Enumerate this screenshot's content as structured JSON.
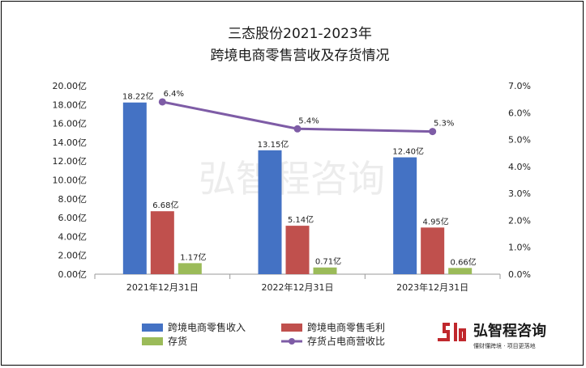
{
  "chart_data": {
    "type": "bar",
    "title_lines": [
      "三态股份2021-2023年",
      "跨境电商零售营收及存货情况"
    ],
    "categories": [
      "2021年12月31日",
      "2022年12月31日",
      "2023年12月31日"
    ],
    "series": [
      {
        "name": "跨境电商零售收入",
        "kind": "bar",
        "color": "#4472C4",
        "values": [
          18.22,
          13.15,
          12.4
        ],
        "labels": [
          "18.22亿",
          "13.15亿",
          "12.40亿"
        ]
      },
      {
        "name": "跨境电商零售毛利",
        "kind": "bar",
        "color": "#C0504D",
        "values": [
          6.68,
          5.14,
          4.95
        ],
        "labels": [
          "6.68亿",
          "5.14亿",
          "4.95亿"
        ]
      },
      {
        "name": "存货",
        "kind": "bar",
        "color": "#9BBB59",
        "values": [
          1.17,
          0.71,
          0.66
        ],
        "labels": [
          "1.17亿",
          "0.71亿",
          "0.66亿"
        ]
      },
      {
        "name": "存货占电商营收比",
        "kind": "line",
        "axis": "right",
        "color": "#7E5CA6",
        "values": [
          6.4,
          5.4,
          5.3
        ],
        "labels": [
          "6.4%",
          "5.4%",
          "5.3%"
        ]
      }
    ],
    "y_left": {
      "ylim": [
        0,
        20
      ],
      "ticks": [
        "0.00亿",
        "2.00亿",
        "4.00亿",
        "6.00亿",
        "8.00亿",
        "10.00亿",
        "12.00亿",
        "14.00亿",
        "16.00亿",
        "18.00亿",
        "20.00亿"
      ]
    },
    "y_right": {
      "ylim": [
        0,
        7
      ],
      "ticks": [
        "0.0%",
        "1.0%",
        "2.0%",
        "3.0%",
        "4.0%",
        "5.0%",
        "6.0%",
        "7.0%"
      ]
    },
    "grid": false,
    "legend_position": "bottom"
  },
  "watermark": "弘智程咨询",
  "brand": {
    "name": "弘智程咨询",
    "slogan": "懂财懂跨境 · 项目更落地",
    "logo_color": "#C0282D"
  }
}
